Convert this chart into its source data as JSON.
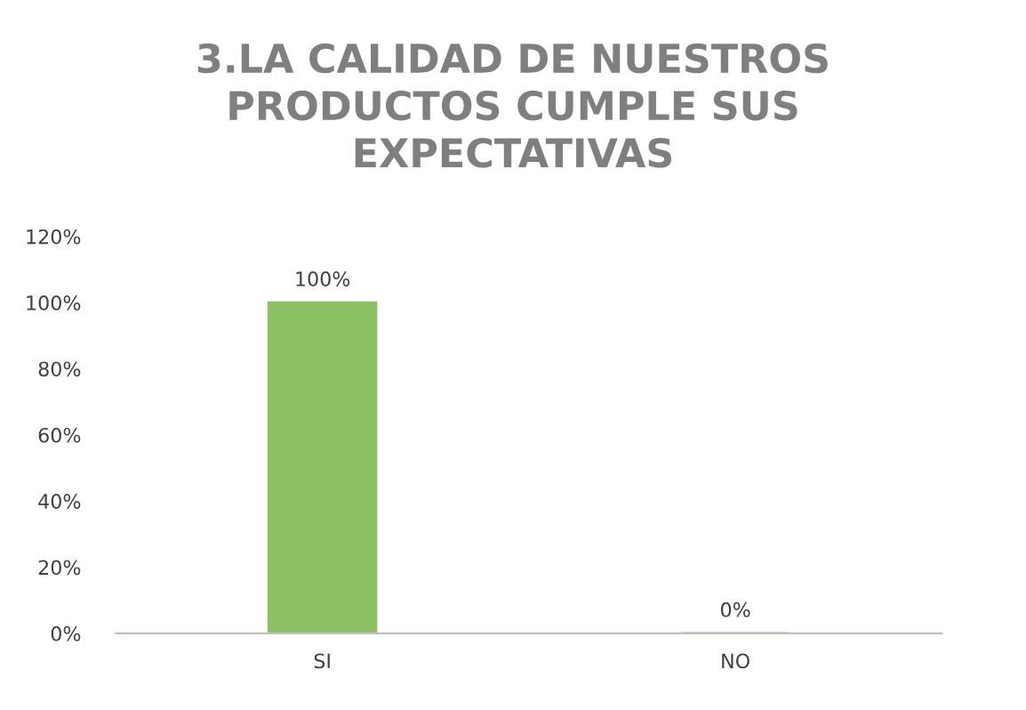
{
  "chart_data": {
    "type": "bar",
    "title": "3.LA CALIDAD DE NUESTROS\nPRODUCTOS CUMPLE SUS\nEXPECTATIVAS",
    "categories": [
      "SI",
      "NO"
    ],
    "values": [
      100,
      0
    ],
    "value_labels": [
      "100%",
      "0%"
    ],
    "color": "#8cc163",
    "ylim": [
      0,
      120
    ],
    "yticks": [
      {
        "value": 0,
        "label": "0%"
      },
      {
        "value": 20,
        "label": "20%"
      },
      {
        "value": 40,
        "label": "40%"
      },
      {
        "value": 60,
        "label": "60%"
      },
      {
        "value": 80,
        "label": "80%"
      },
      {
        "value": 100,
        "label": "100%"
      },
      {
        "value": 120,
        "label": "120%"
      }
    ],
    "grid": false,
    "legend": false
  }
}
